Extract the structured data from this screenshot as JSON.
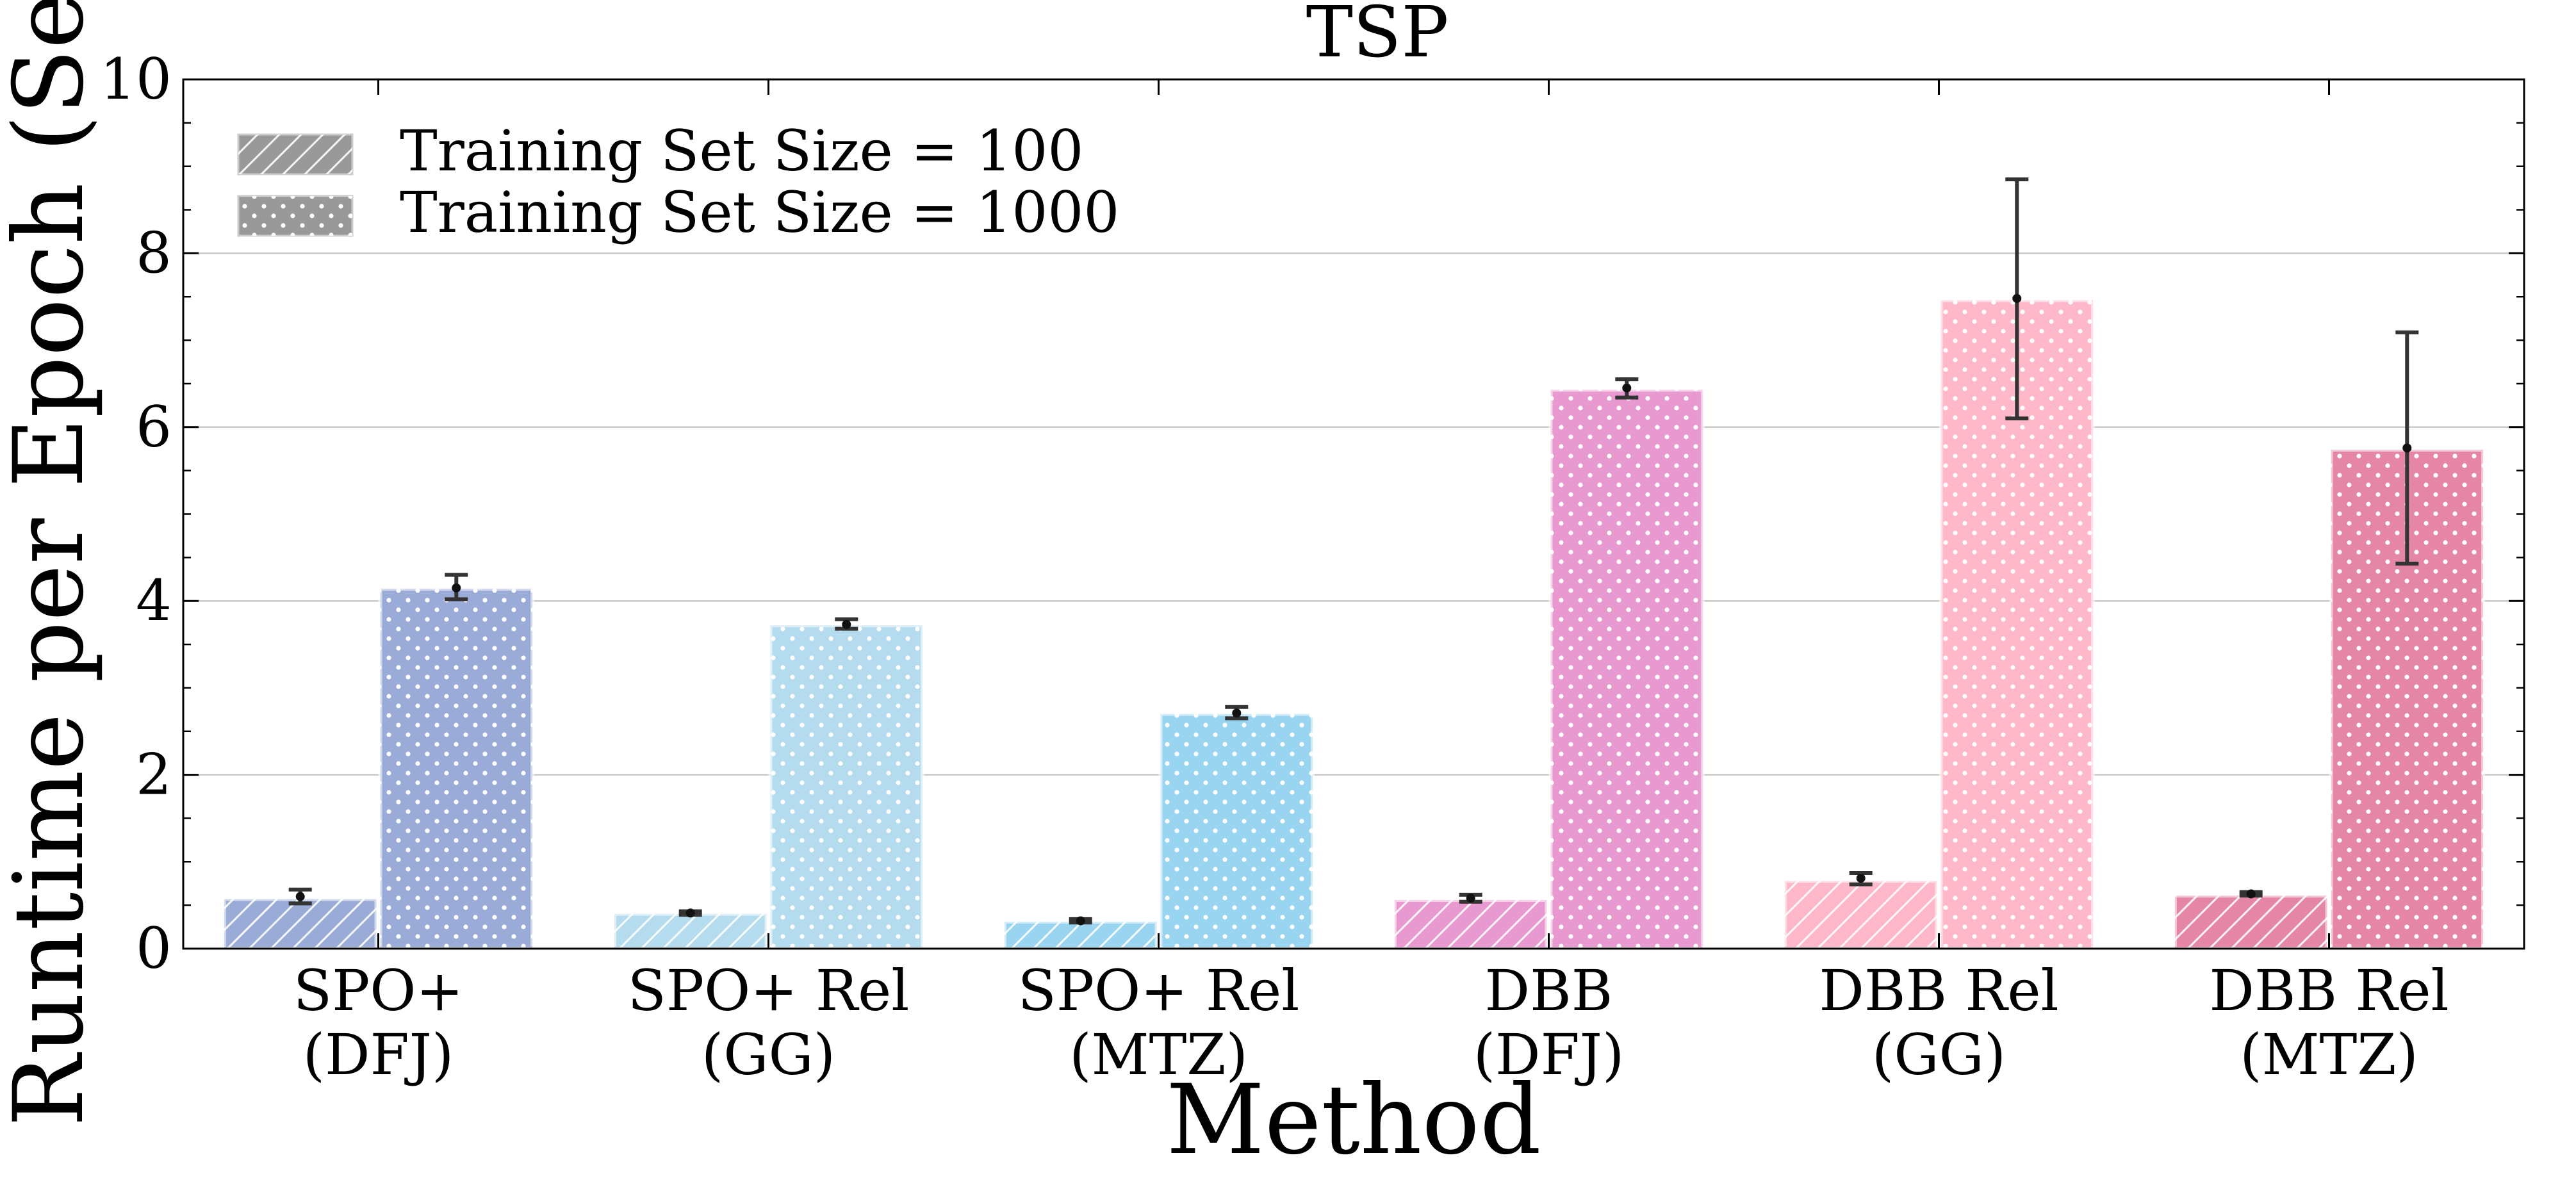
{
  "chart_data": {
    "type": "bar",
    "title": "TSP",
    "xlabel": "Method",
    "ylabel": "Runtime per Epoch (Sec)",
    "ylim": [
      0,
      10
    ],
    "yticks": [
      "0",
      "2",
      "4",
      "6",
      "8",
      "10"
    ],
    "grid": "horizontal",
    "legend_position": "top-left",
    "categories": [
      {
        "line1": "SPO+",
        "line2": "(DFJ)"
      },
      {
        "line1": "SPO+ Rel",
        "line2": "(GG)"
      },
      {
        "line1": "SPO+ Rel",
        "line2": "(MTZ)"
      },
      {
        "line1": "DBB",
        "line2": "(DFJ)"
      },
      {
        "line1": "DBB Rel",
        "line2": "(GG)"
      },
      {
        "line1": "DBB Rel",
        "line2": "(MTZ)"
      }
    ],
    "colors": [
      "#9aabd8",
      "#b5dcee",
      "#99d4f0",
      "#e89ad0",
      "#ffb8c9",
      "#e586a6"
    ],
    "series": [
      {
        "name": "Training Set Size = 100",
        "pattern": "hatch",
        "values": [
          0.57,
          0.4,
          0.31,
          0.56,
          0.78,
          0.61
        ],
        "err_low": [
          0.52,
          0.39,
          0.3,
          0.54,
          0.74,
          0.61
        ],
        "err_high": [
          0.68,
          0.43,
          0.34,
          0.62,
          0.87,
          0.65
        ],
        "means": [
          0.6,
          0.41,
          0.32,
          0.58,
          0.81,
          0.63
        ]
      },
      {
        "name": "Training Set Size = 1000",
        "pattern": "dots",
        "values": [
          4.14,
          3.72,
          2.7,
          6.43,
          7.46,
          5.74
        ],
        "err_low": [
          4.02,
          3.68,
          2.65,
          6.34,
          6.1,
          4.43
        ],
        "err_high": [
          4.3,
          3.79,
          2.78,
          6.55,
          8.85,
          7.09
        ],
        "means": [
          4.15,
          3.73,
          2.71,
          6.45,
          7.48,
          5.76
        ]
      }
    ]
  }
}
